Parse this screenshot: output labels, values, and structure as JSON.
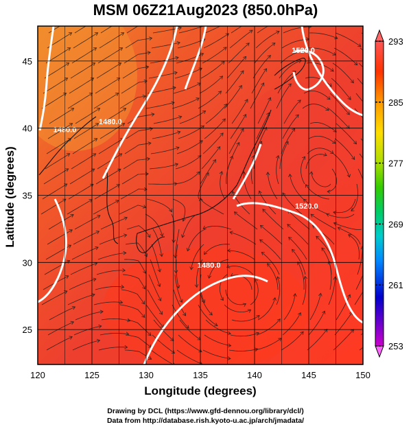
{
  "header": {
    "title": "MSM 06Z21Aug2023 (850.0hPa)"
  },
  "map": {
    "x_axis": {
      "label": "Longitude (degrees)",
      "ticks": [
        120,
        125,
        130,
        135,
        140,
        145,
        150
      ],
      "range": [
        120,
        150
      ]
    },
    "y_axis": {
      "label": "Latitude  (degrees)",
      "ticks": [
        25,
        30,
        35,
        40,
        45
      ],
      "range": [
        22.4,
        47.6
      ]
    },
    "field": "temperature",
    "contour_labels": [
      {
        "text": "1480.0",
        "lon": 122.5,
        "lat": 39.7
      },
      {
        "text": "1480.0",
        "lon": 126.7,
        "lat": 40.3
      },
      {
        "text": "1520.0",
        "lon": 144.5,
        "lat": 45.6
      },
      {
        "text": "1520.0",
        "lon": 144.8,
        "lat": 34.0
      },
      {
        "text": "1480.0",
        "lon": 135.8,
        "lat": 29.6
      }
    ]
  },
  "colorbar": {
    "labels": [
      "293",
      "285",
      "277",
      "269",
      "261",
      "253"
    ],
    "min": 253,
    "max": 293,
    "colors": [
      "#cc00cc",
      "#0000cc",
      "#0088ff",
      "#00cccc",
      "#00cc66",
      "#33cc00",
      "#aadd00",
      "#ffdd00",
      "#ff9900",
      "#ff3300",
      "#ff5555"
    ]
  },
  "footer": {
    "line1": "Drawing by DCL (https://www.gfd-dennou.org/library/dcl/)",
    "line2": "Data from http://database.rish.kyoto-u.ac.jp/arch/jmadata/"
  }
}
